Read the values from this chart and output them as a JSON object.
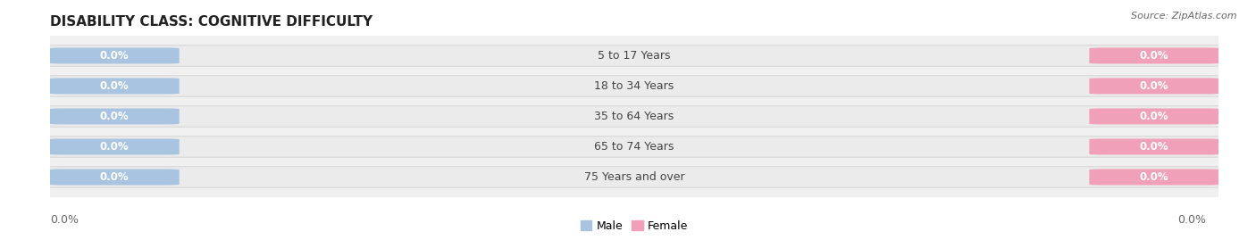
{
  "title": "DISABILITY CLASS: COGNITIVE DIFFICULTY",
  "source_text": "Source: ZipAtlas.com",
  "categories": [
    "5 to 17 Years",
    "18 to 34 Years",
    "35 to 64 Years",
    "65 to 74 Years",
    "75 Years and over"
  ],
  "male_values": [
    0.0,
    0.0,
    0.0,
    0.0,
    0.0
  ],
  "female_values": [
    0.0,
    0.0,
    0.0,
    0.0,
    0.0
  ],
  "male_color": "#a8c4e0",
  "female_color": "#f0a0b8",
  "male_label": "Male",
  "female_label": "Female",
  "bar_bg_color": "#ebebeb",
  "bar_border_color": "#d5d5d5",
  "bar_height": 0.62,
  "title_fontsize": 11,
  "tick_fontsize": 9,
  "label_fontsize": 9,
  "fig_bg_color": "#ffffff",
  "ax_bg_color": "#f0f0f0",
  "left_axis_label": "0.0%",
  "right_axis_label": "0.0%",
  "pill_label_color": "#ffffff",
  "pill_label_fontsize": 8.5,
  "xlim_left": -1.05,
  "xlim_right": 1.05
}
